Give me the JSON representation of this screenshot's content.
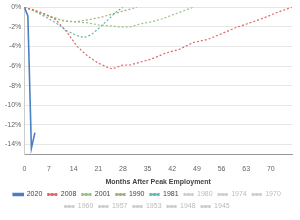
{
  "chart_data": {
    "type": "line",
    "x_label": "Months After Peak Employment",
    "series": [
      {
        "name": "2020",
        "color": "#4a7fc1",
        "line_style": "solid",
        "x": [
          0,
          1,
          2,
          3
        ],
        "values": [
          0,
          -0.9,
          -14.4,
          -12.8
        ]
      },
      {
        "name": "2008",
        "color": "#e06666",
        "line_style": "dotted",
        "x": [
          0,
          3,
          6,
          9,
          12,
          15,
          18,
          21,
          24,
          25,
          28,
          30,
          33,
          36,
          40,
          44,
          48,
          52,
          56,
          60,
          64,
          68,
          72,
          76
        ],
        "values": [
          0,
          -0.3,
          -0.7,
          -1.3,
          -2.5,
          -4.0,
          -5.0,
          -5.7,
          -6.2,
          -6.3,
          -5.9,
          -5.9,
          -5.6,
          -5.3,
          -4.7,
          -4.3,
          -3.6,
          -3.3,
          -2.7,
          -2.1,
          -1.6,
          -1.1,
          -0.5,
          0
        ]
      },
      {
        "name": "2001",
        "color": "#93c47d",
        "line_style": "dotted",
        "x": [
          0,
          3,
          6,
          9,
          12,
          15,
          18,
          21,
          24,
          27,
          30,
          33,
          36,
          39,
          42,
          45,
          48
        ],
        "values": [
          0,
          -0.4,
          -0.8,
          -1.2,
          -1.4,
          -1.5,
          -1.6,
          -1.8,
          -1.9,
          -2.0,
          -2.0,
          -1.7,
          -1.5,
          -1.2,
          -0.8,
          -0.4,
          0
        ]
      },
      {
        "name": "1990",
        "color": "#a8a878",
        "line_style": "dotted",
        "x": [
          0,
          3,
          6,
          9,
          11,
          14,
          18,
          22,
          26,
          30,
          32
        ],
        "values": [
          0,
          -0.4,
          -0.8,
          -1.1,
          -1.4,
          -1.5,
          -1.3,
          -1.0,
          -0.6,
          -0.2,
          0
        ]
      },
      {
        "name": "1981",
        "color": "#5fb8b0",
        "line_style": "dotted",
        "x": [
          0,
          3,
          6,
          9,
          12,
          15,
          17,
          19,
          21,
          24,
          26,
          28
        ],
        "values": [
          0,
          -0.4,
          -1.0,
          -1.6,
          -2.4,
          -2.9,
          -3.1,
          -2.8,
          -2.2,
          -1.2,
          -0.5,
          0
        ]
      },
      {
        "name": "1980",
        "color": "#cccccc",
        "line_style": "dotted",
        "x": [],
        "values": []
      },
      {
        "name": "1974",
        "color": "#cccccc",
        "line_style": "dotted",
        "x": [],
        "values": []
      },
      {
        "name": "1970",
        "color": "#cccccc",
        "line_style": "dotted",
        "x": [],
        "values": []
      },
      {
        "name": "1960",
        "color": "#cccccc",
        "line_style": "dotted",
        "x": [],
        "values": []
      },
      {
        "name": "1957",
        "color": "#cccccc",
        "line_style": "dotted",
        "x": [],
        "values": []
      },
      {
        "name": "1953",
        "color": "#cccccc",
        "line_style": "dotted",
        "x": [],
        "values": []
      },
      {
        "name": "1948",
        "color": "#cccccc",
        "line_style": "dotted",
        "x": [],
        "values": []
      },
      {
        "name": "1945",
        "color": "#cccccc",
        "line_style": "dotted",
        "x": [],
        "values": []
      }
    ],
    "xlim": [
      0,
      76
    ],
    "xticks": [
      0,
      7,
      14,
      21,
      28,
      35,
      42,
      49,
      56,
      63,
      70
    ],
    "ylim": [
      -15,
      0
    ],
    "yticks": [
      {
        "value": 0,
        "label": "0%"
      },
      {
        "value": -2,
        "label": "-2%"
      },
      {
        "value": -4,
        "label": "-4%"
      },
      {
        "value": -6,
        "label": "-6%"
      },
      {
        "value": -8,
        "label": "-8%"
      },
      {
        "value": -10,
        "label": "-10%"
      },
      {
        "value": -12,
        "label": "-12%"
      },
      {
        "value": -14,
        "label": "-14%"
      }
    ],
    "grid": true,
    "legend": "bottom"
  }
}
